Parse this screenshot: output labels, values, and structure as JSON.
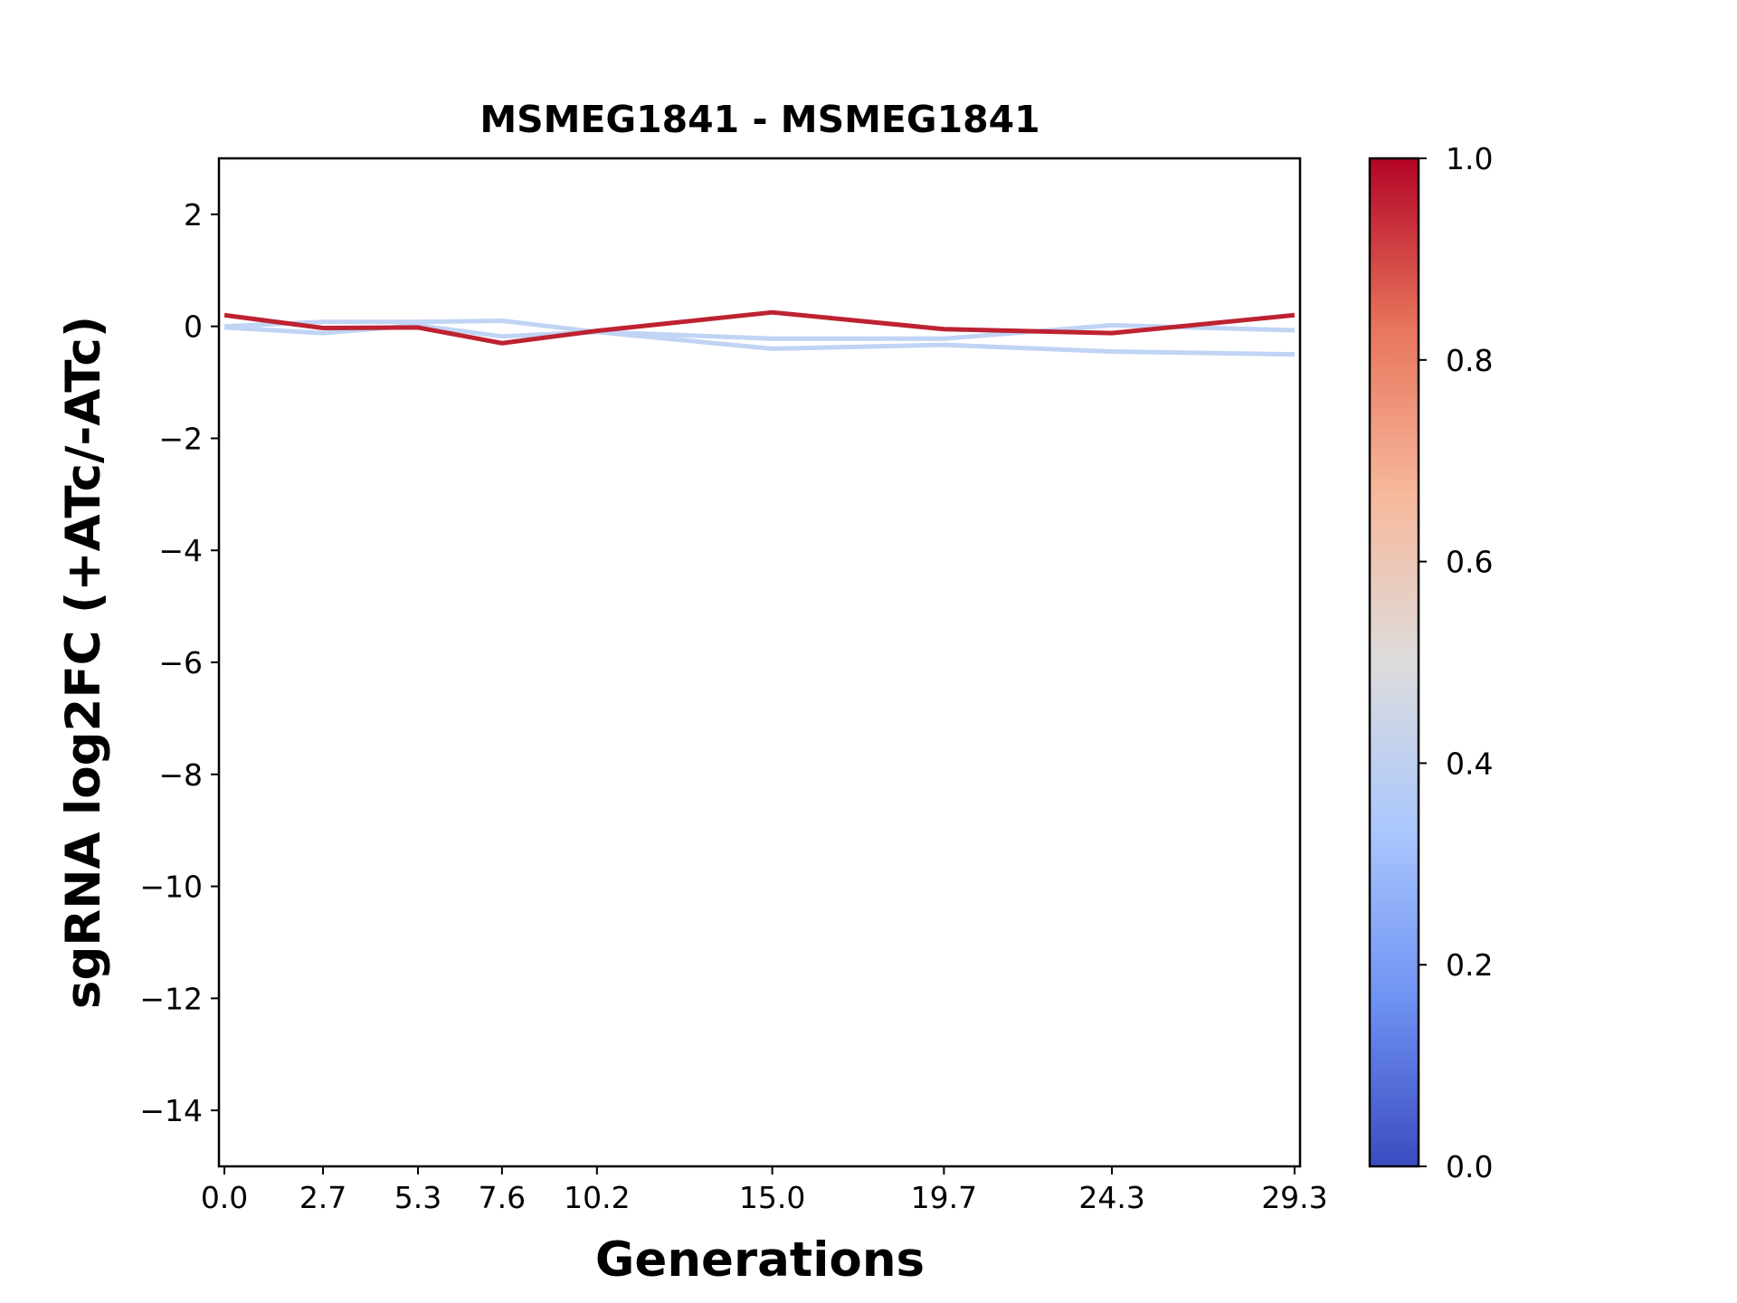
{
  "chart_data": {
    "type": "line",
    "title": "MSMEG1841 - MSMEG1841",
    "xlabel": "Generations",
    "ylabel": "sgRNA log2FC (+ATc/-ATc)",
    "x": [
      0.0,
      2.7,
      5.3,
      7.6,
      10.2,
      15.0,
      19.7,
      24.3,
      29.3
    ],
    "xtick_labels": [
      "0.0",
      "2.7",
      "5.3",
      "7.6",
      "10.2",
      "15.0",
      "19.7",
      "24.3",
      "29.3"
    ],
    "xlim": [
      -0.15,
      29.45
    ],
    "ylim": [
      -15,
      3
    ],
    "yticks": [
      2,
      0,
      -2,
      -4,
      -6,
      -8,
      -10,
      -12,
      -14
    ],
    "ytick_labels": [
      "2",
      "0",
      "−2",
      "−4",
      "−6",
      "−8",
      "−10",
      "−12",
      "−14"
    ],
    "grid": false,
    "series": [
      {
        "color": "#c0d4f5",
        "colorbar_value": 0.4,
        "values": [
          0.0,
          0.08,
          0.08,
          0.1,
          -0.1,
          -0.22,
          -0.22,
          0.02,
          -0.07
        ]
      },
      {
        "color": "#c0d4f5",
        "colorbar_value": 0.4,
        "values": [
          -0.02,
          -0.12,
          0.02,
          -0.18,
          -0.1,
          -0.4,
          -0.33,
          -0.45,
          -0.5
        ]
      },
      {
        "color": "#be2230",
        "colorbar_value": 1.0,
        "values": [
          0.2,
          -0.03,
          -0.02,
          -0.3,
          -0.08,
          0.25,
          -0.05,
          -0.12,
          0.2
        ]
      }
    ],
    "colorbar": {
      "colormap": "coolwarm",
      "range": [
        0.0,
        1.0
      ],
      "ticks": [
        0.0,
        0.2,
        0.4,
        0.6,
        0.8,
        1.0
      ],
      "tick_labels": [
        "0.0",
        "0.2",
        "0.4",
        "0.6",
        "0.8",
        "1.0"
      ],
      "colors": [
        "#3b4cc0",
        "#6f92f3",
        "#aac7fd",
        "#dddcdc",
        "#f7b89c",
        "#e7745b",
        "#b40426"
      ]
    }
  }
}
